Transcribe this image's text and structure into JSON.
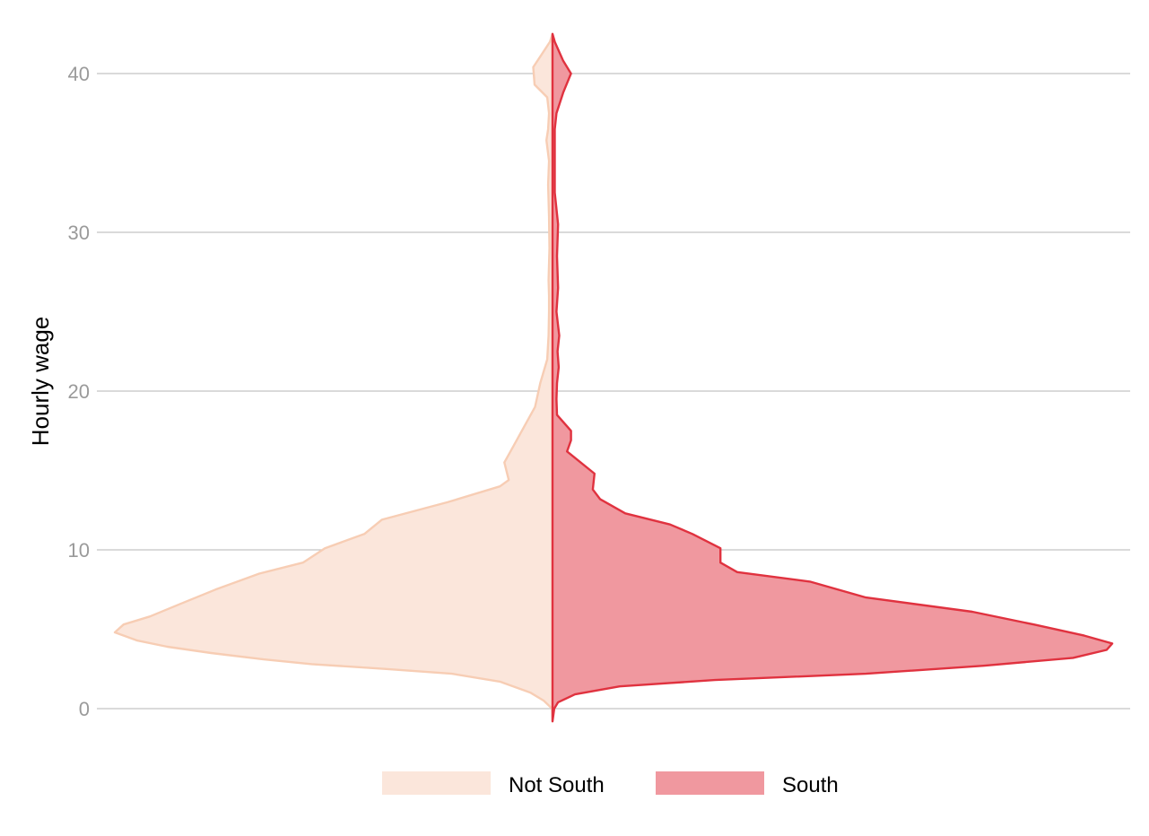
{
  "chart_data": {
    "type": "split violin",
    "ylabel": "Hourly wage",
    "ylim": [
      -0.8,
      42.5
    ],
    "y_ticks": [
      0,
      10,
      20,
      30,
      40
    ],
    "y_tick_labels": [
      "0",
      "10",
      "20",
      "30",
      "40"
    ],
    "grid": "horizontal major lines",
    "legend_position": "bottom",
    "series": [
      {
        "name": "Not South",
        "side": "left",
        "fill": "#fbe6db",
        "stroke": "#f7cdb4",
        "density": [
          [
            -0.8,
            0
          ],
          [
            0,
            0.001
          ],
          [
            0.5,
            0.02
          ],
          [
            1,
            0.05
          ],
          [
            1.7,
            0.12
          ],
          [
            2.2,
            0.23
          ],
          [
            2.5,
            0.38
          ],
          [
            2.8,
            0.55
          ],
          [
            3.1,
            0.66
          ],
          [
            3.5,
            0.78
          ],
          [
            3.9,
            0.88
          ],
          [
            4.3,
            0.95
          ],
          [
            4.8,
            1.0
          ],
          [
            5.3,
            0.98
          ],
          [
            5.8,
            0.92
          ],
          [
            6.6,
            0.85
          ],
          [
            7.5,
            0.77
          ],
          [
            8.5,
            0.67
          ],
          [
            9.2,
            0.57
          ],
          [
            10.1,
            0.52
          ],
          [
            11.0,
            0.43
          ],
          [
            11.9,
            0.39
          ],
          [
            13.0,
            0.24
          ],
          [
            14.0,
            0.12
          ],
          [
            14.4,
            0.1
          ],
          [
            15.5,
            0.11
          ],
          [
            16.5,
            0.09
          ],
          [
            17.5,
            0.07
          ],
          [
            19.0,
            0.04
          ],
          [
            20.5,
            0.028
          ],
          [
            22.0,
            0.012
          ],
          [
            23.5,
            0.009
          ],
          [
            25.0,
            0.008
          ],
          [
            26.0,
            0.008
          ],
          [
            27.0,
            0.009
          ],
          [
            29.0,
            0.007
          ],
          [
            31.0,
            0.008
          ],
          [
            33.0,
            0.01
          ],
          [
            34.5,
            0.008
          ],
          [
            35.8,
            0.014
          ],
          [
            36.5,
            0.01
          ],
          [
            37.5,
            0.008
          ],
          [
            38.5,
            0.012
          ],
          [
            39.3,
            0.041
          ],
          [
            40.4,
            0.044
          ],
          [
            41.2,
            0.025
          ],
          [
            42.0,
            0.006
          ],
          [
            42.5,
            0
          ]
        ]
      },
      {
        "name": "South",
        "side": "right",
        "fill": "#f0989f",
        "stroke": "#e0323f",
        "density": [
          [
            -0.8,
            0
          ],
          [
            0,
            0.003
          ],
          [
            0.4,
            0.01
          ],
          [
            0.9,
            0.04
          ],
          [
            1.4,
            0.12
          ],
          [
            1.8,
            0.29
          ],
          [
            2.2,
            0.56
          ],
          [
            2.7,
            0.77
          ],
          [
            3.2,
            0.93
          ],
          [
            3.7,
            0.99
          ],
          [
            4.1,
            1.0
          ],
          [
            4.6,
            0.95
          ],
          [
            5.3,
            0.86
          ],
          [
            6.1,
            0.75
          ],
          [
            7.0,
            0.56
          ],
          [
            8.0,
            0.46
          ],
          [
            8.6,
            0.33
          ],
          [
            9.2,
            0.3
          ],
          [
            10.1,
            0.3
          ],
          [
            11.0,
            0.25
          ],
          [
            11.6,
            0.21
          ],
          [
            12.3,
            0.13
          ],
          [
            13.2,
            0.085
          ],
          [
            13.8,
            0.072
          ],
          [
            14.8,
            0.075
          ],
          [
            16.2,
            0.026
          ],
          [
            16.9,
            0.033
          ],
          [
            17.5,
            0.033
          ],
          [
            18.5,
            0.008
          ],
          [
            19.5,
            0.007
          ],
          [
            20.5,
            0.008
          ],
          [
            21.5,
            0.011
          ],
          [
            22.5,
            0.009
          ],
          [
            23.5,
            0.012
          ],
          [
            25.0,
            0.007
          ],
          [
            26.5,
            0.01
          ],
          [
            28.5,
            0.008
          ],
          [
            30.5,
            0.01
          ],
          [
            32.5,
            0.004
          ],
          [
            34.5,
            0.004
          ],
          [
            36.5,
            0.004
          ],
          [
            37.5,
            0.007
          ],
          [
            38.8,
            0.019
          ],
          [
            40.0,
            0.033
          ],
          [
            40.8,
            0.019
          ],
          [
            42.0,
            0.004
          ],
          [
            42.5,
            0
          ]
        ]
      }
    ]
  },
  "colors": {
    "grid": "#c3c3c3",
    "tick_label": "#9a9a9a",
    "axis_title": "#000000",
    "legend_text": "#000000"
  }
}
